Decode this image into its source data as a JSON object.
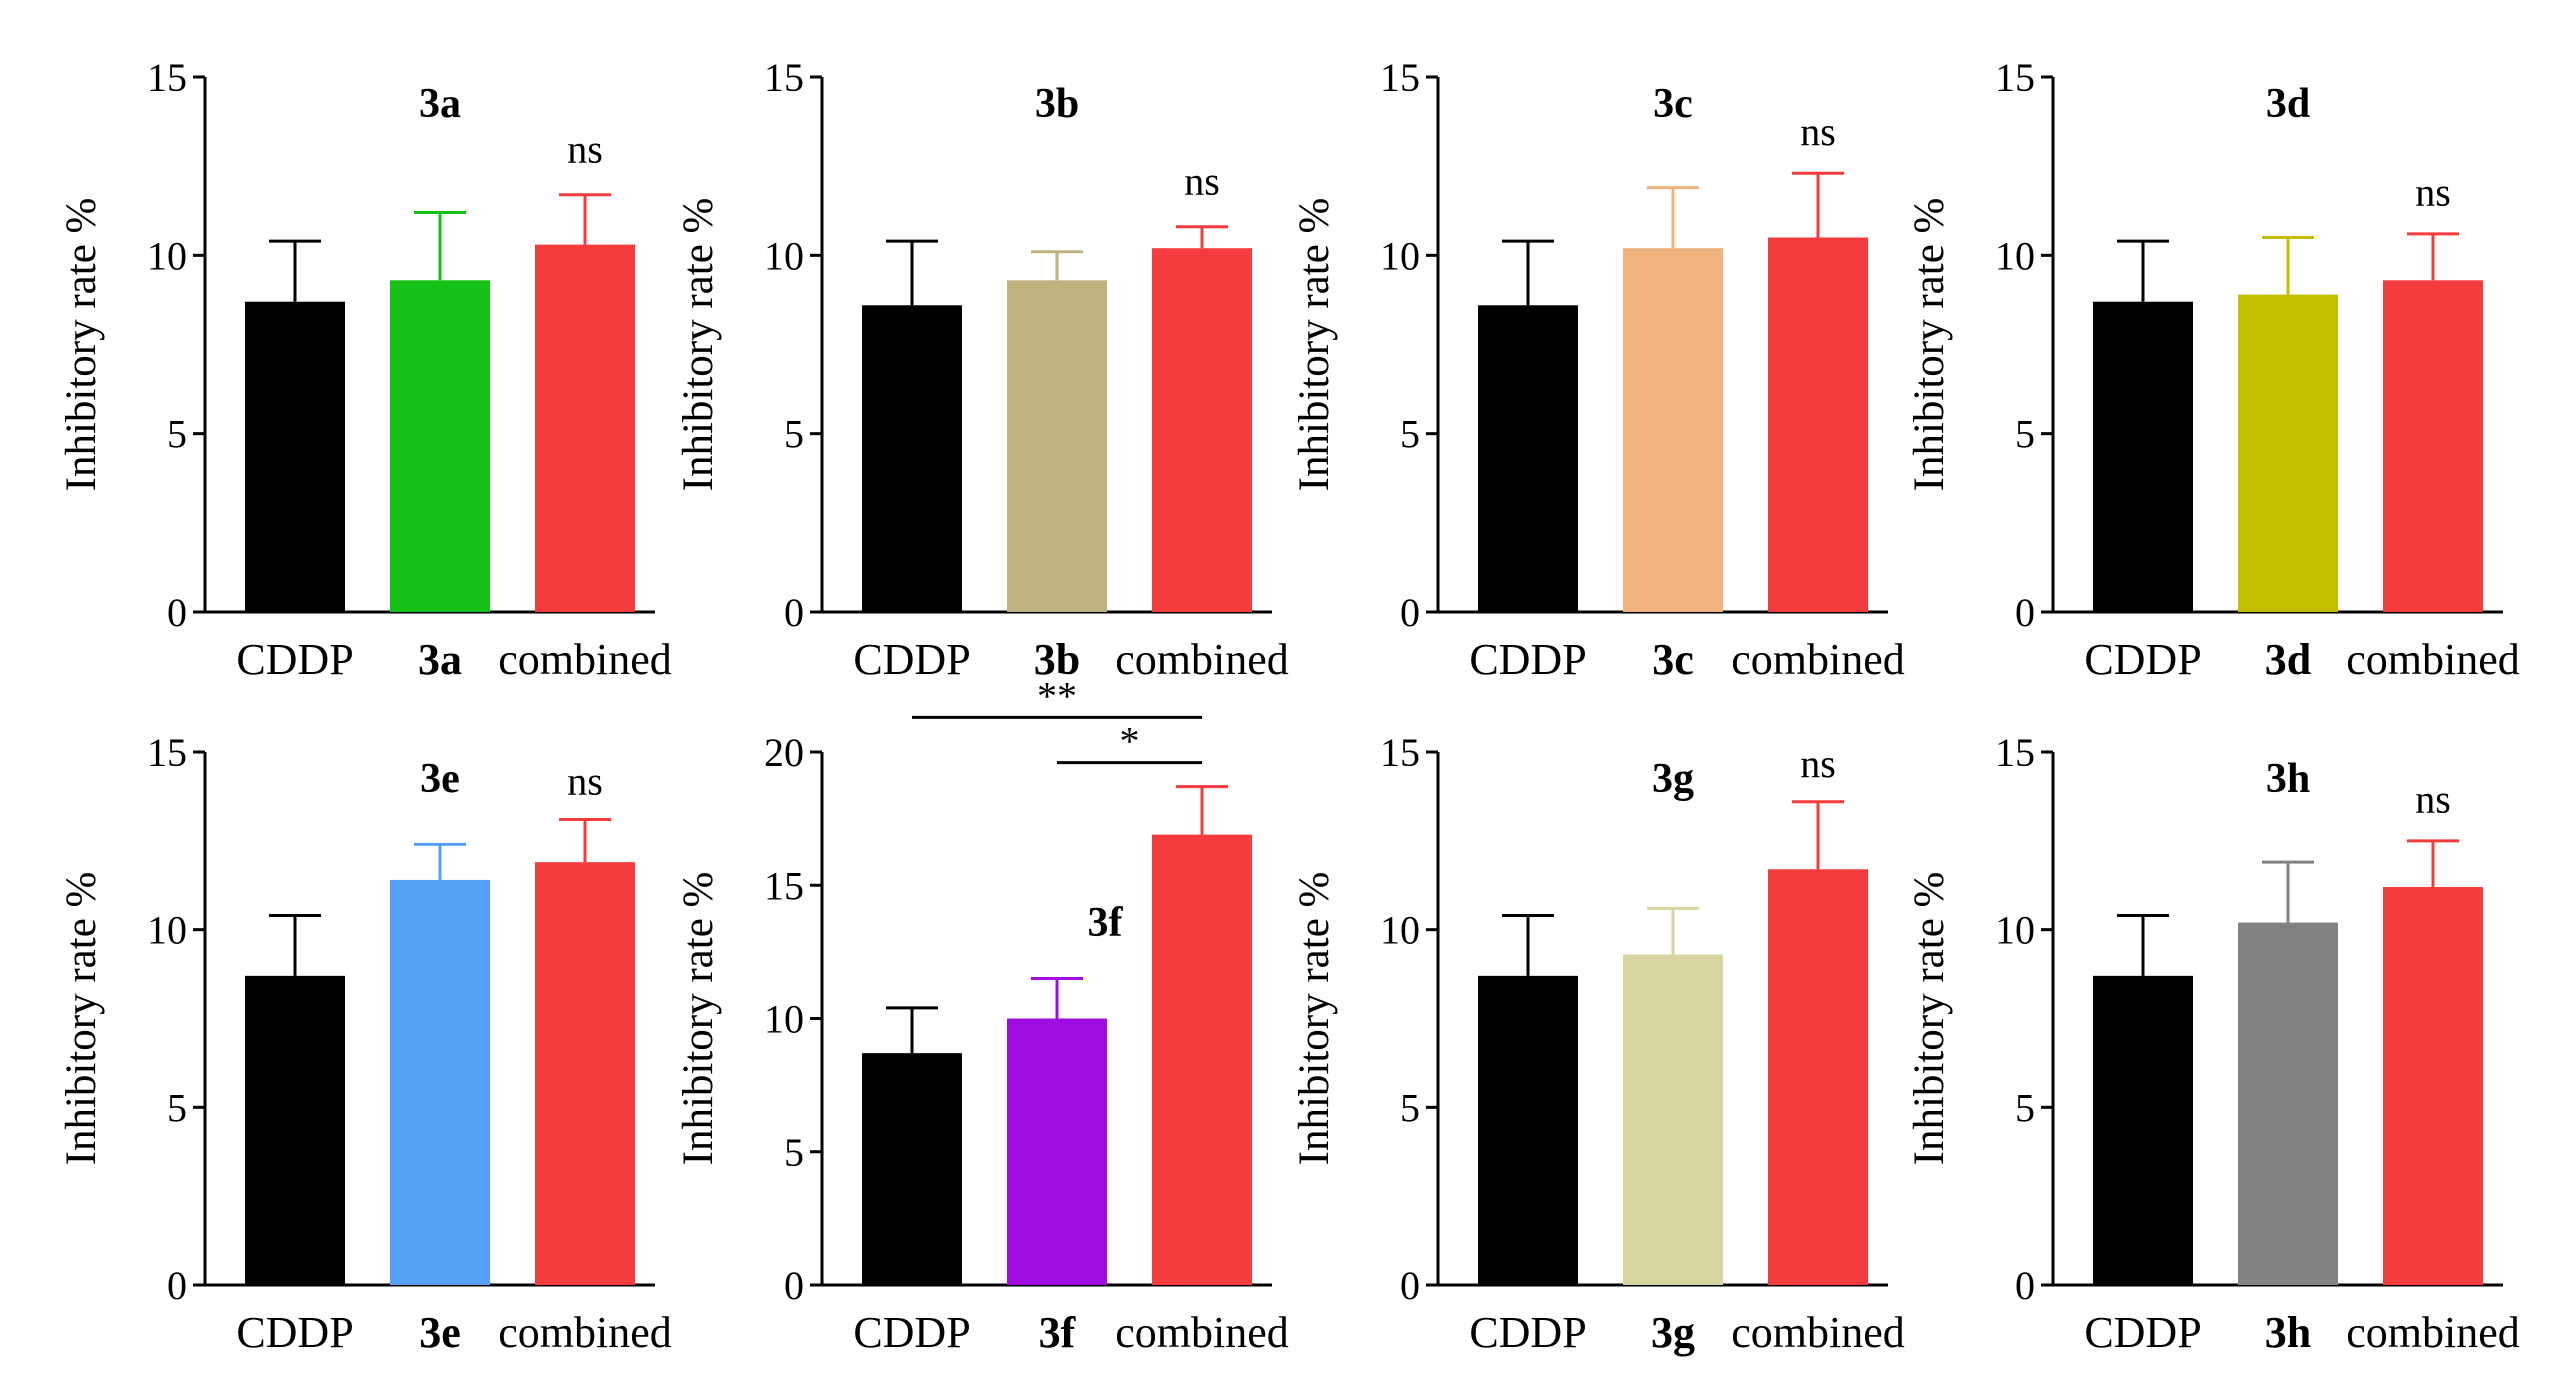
{
  "chart_data": [
    {
      "type": "bar",
      "title": "3a",
      "ylabel": "Inhibitory rate %",
      "ylim": [
        0,
        15
      ],
      "yticks": [
        0,
        5,
        10,
        15
      ],
      "categories": [
        "CDDP",
        "3a",
        "combined"
      ],
      "values": [
        8.7,
        9.3,
        10.3
      ],
      "errors": [
        1.7,
        1.9,
        1.4
      ],
      "colors": [
        "#000000",
        "#14c114",
        "#f53c3c"
      ],
      "annotations": [
        {
          "category": "combined",
          "text": "ns",
          "y": 12.6
        }
      ]
    },
    {
      "type": "bar",
      "title": "3b",
      "ylabel": "Inhibitory rate %",
      "ylim": [
        0,
        15
      ],
      "yticks": [
        0,
        5,
        10,
        15
      ],
      "categories": [
        "CDDP",
        "3b",
        "combined"
      ],
      "values": [
        8.6,
        9.3,
        10.2
      ],
      "errors": [
        1.8,
        0.8,
        0.6
      ],
      "colors": [
        "#000000",
        "#c0b27e",
        "#f53c3c"
      ],
      "annotations": [
        {
          "category": "combined",
          "text": "ns",
          "y": 11.7
        }
      ]
    },
    {
      "type": "bar",
      "title": "3c",
      "ylabel": "Inhibitory rate %",
      "ylim": [
        0,
        15
      ],
      "yticks": [
        0,
        5,
        10,
        15
      ],
      "categories": [
        "CDDP",
        "3c",
        "combined"
      ],
      "values": [
        8.6,
        10.2,
        10.5
      ],
      "errors": [
        1.8,
        1.7,
        1.8
      ],
      "colors": [
        "#000000",
        "#f0b27e",
        "#f53c3c"
      ],
      "annotations": [
        {
          "category": "combined",
          "text": "ns",
          "y": 13.1
        }
      ]
    },
    {
      "type": "bar",
      "title": "3d",
      "ylabel": "Inhibitory rate %",
      "ylim": [
        0,
        15
      ],
      "yticks": [
        0,
        5,
        10,
        15
      ],
      "categories": [
        "CDDP",
        "3d",
        "combined"
      ],
      "values": [
        8.7,
        8.9,
        9.3
      ],
      "errors": [
        1.7,
        1.6,
        1.3
      ],
      "colors": [
        "#000000",
        "#c5bd00",
        "#f53c3c"
      ],
      "annotations": [
        {
          "category": "combined",
          "text": "ns",
          "y": 11.4
        }
      ]
    },
    {
      "type": "bar",
      "title": "3e",
      "ylabel": "Inhibitory rate %",
      "ylim": [
        0,
        15
      ],
      "yticks": [
        0,
        5,
        10,
        15
      ],
      "categories": [
        "CDDP",
        "3e",
        "combined"
      ],
      "values": [
        8.7,
        11.4,
        11.9
      ],
      "errors": [
        1.7,
        1.0,
        1.2
      ],
      "colors": [
        "#000000",
        "#55a0f5",
        "#f53c3c"
      ],
      "annotations": [
        {
          "category": "combined",
          "text": "ns",
          "y": 13.8
        }
      ]
    },
    {
      "type": "bar",
      "title": "3f",
      "title_position": "inside",
      "ylabel": "Inhibitory rate %",
      "ylim": [
        0,
        20
      ],
      "yticks": [
        0,
        5,
        10,
        15,
        20
      ],
      "categories": [
        "CDDP",
        "3f",
        "combined"
      ],
      "values": [
        8.7,
        10.0,
        16.9
      ],
      "errors": [
        1.7,
        1.5,
        1.8
      ],
      "colors": [
        "#000000",
        "#a00de0",
        "#f53c3c"
      ],
      "brackets": [
        {
          "from": "CDDP",
          "to": "combined",
          "text": "**",
          "y": 21.3
        },
        {
          "from": "3f",
          "to": "combined",
          "text": "*",
          "y": 19.6
        }
      ]
    },
    {
      "type": "bar",
      "title": "3g",
      "ylabel": "Inhibitory rate %",
      "ylim": [
        0,
        15
      ],
      "yticks": [
        0,
        5,
        10,
        15
      ],
      "categories": [
        "CDDP",
        "3g",
        "combined"
      ],
      "values": [
        8.7,
        9.3,
        11.7
      ],
      "errors": [
        1.7,
        1.3,
        1.9
      ],
      "colors": [
        "#000000",
        "#d8d6a0",
        "#f53c3c"
      ],
      "annotations": [
        {
          "category": "combined",
          "text": "ns",
          "y": 14.3
        }
      ]
    },
    {
      "type": "bar",
      "title": "3h",
      "ylabel": "Inhibitory rate %",
      "ylim": [
        0,
        15
      ],
      "yticks": [
        0,
        5,
        10,
        15
      ],
      "categories": [
        "CDDP",
        "3h",
        "combined"
      ],
      "values": [
        8.7,
        10.2,
        11.2
      ],
      "errors": [
        1.7,
        1.7,
        1.3
      ],
      "colors": [
        "#000000",
        "#828282",
        "#f53c3c"
      ],
      "annotations": [
        {
          "category": "combined",
          "text": "ns",
          "y": 13.3
        }
      ]
    }
  ]
}
